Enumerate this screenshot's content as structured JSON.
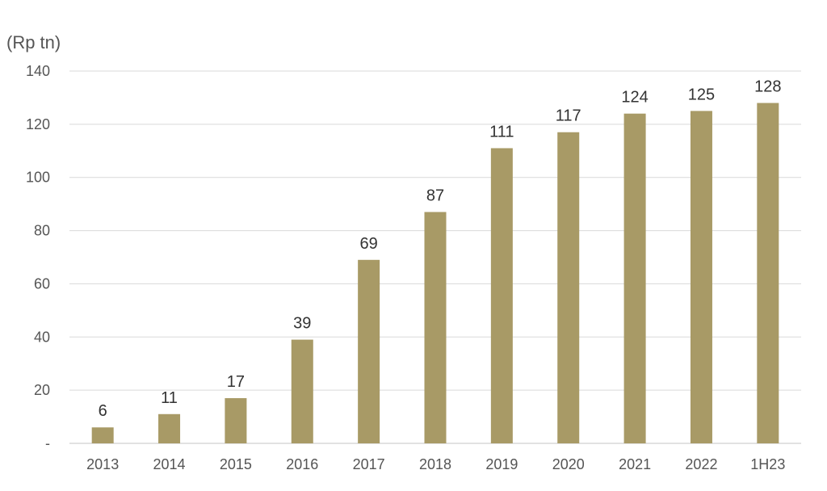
{
  "chart_data": {
    "type": "bar",
    "title": "",
    "unit_label": "(Rp tn)",
    "xlabel": "",
    "ylabel": "",
    "categories": [
      "2013",
      "2014",
      "2015",
      "2016",
      "2017",
      "2018",
      "2019",
      "2020",
      "2021",
      "2022",
      "1H23"
    ],
    "values": [
      6,
      11,
      17,
      39,
      69,
      87,
      111,
      117,
      124,
      125,
      128
    ],
    "data_labels": [
      "6",
      "11",
      "17",
      "39",
      "69",
      "87",
      "111",
      "117",
      "124",
      "125",
      "128"
    ],
    "ylim": [
      0,
      140
    ],
    "yticks": [
      0,
      20,
      40,
      60,
      80,
      100,
      120,
      140
    ],
    "ytick_labels": [
      "-",
      "20",
      "40",
      "60",
      "80",
      "100",
      "120",
      "140"
    ],
    "grid": true,
    "legend": "none",
    "bar_color": "#a89a66",
    "grid_color": "#d9d9d9",
    "text_color": "#555555"
  }
}
